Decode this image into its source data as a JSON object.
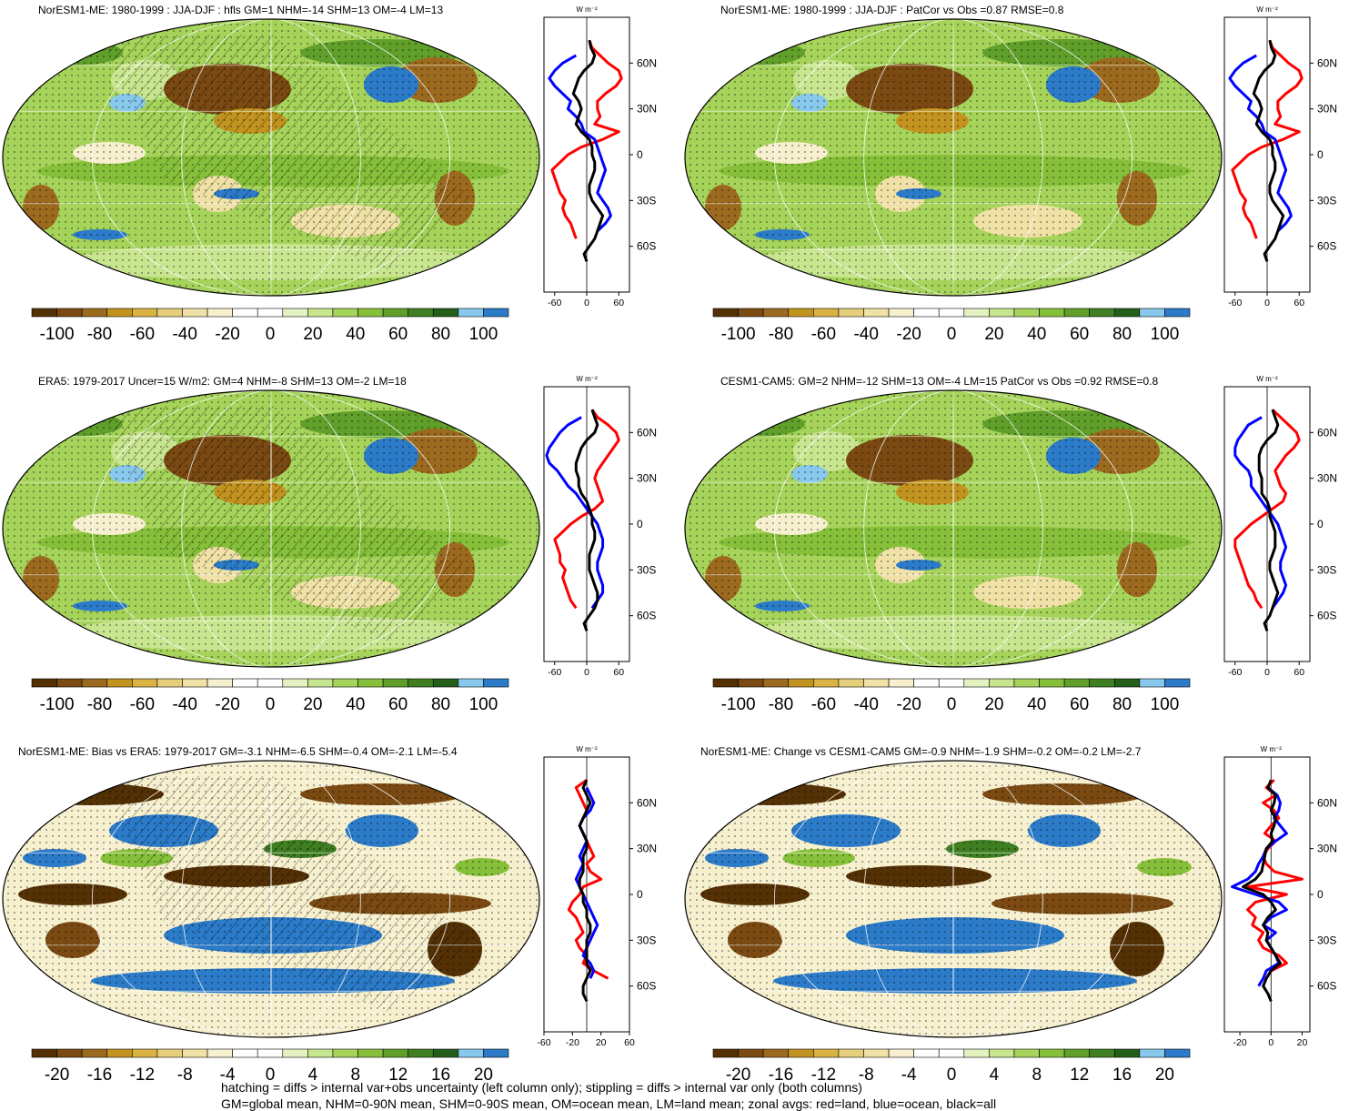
{
  "figure": {
    "footnote_1": "hatching = diffs > internal var+obs uncertainty (left column only); stippling = diffs > internal var only (both columns)",
    "footnote_2": "GM=global mean, NHM=0-90N mean, SHM=0-90S mean, OM=ocean mean, LM=land mean; zonal avgs: red=land, blue=ocean, black=all"
  },
  "colors": {
    "land": "#ff0000",
    "ocean": "#0000ff",
    "all": "#000000",
    "palette": [
      "#543005",
      "#7a4a12",
      "#9c6a1f",
      "#c2941f",
      "#d9b443",
      "#e6cf7a",
      "#f0e2a6",
      "#f7f0cf",
      "#ffffff",
      "#ffffff",
      "#e4f2c2",
      "#c8e58f",
      "#a6d35a",
      "#86c03a",
      "#5f9f2a",
      "#3f7f22",
      "#245f1a",
      "#87c8ec",
      "#2b7bc9"
    ]
  },
  "chart_data": [
    {
      "type": "map",
      "id": "p1",
      "title": "NorESM1-ME: 1980-1999 : JJA-DJF : hfls GM=1 NHM=-14 SHM=13 OM=-4 LM=13",
      "hatched": true,
      "colorbar_ticks": [
        "-100",
        "-80",
        "-60",
        "-40",
        "-20",
        "0",
        "20",
        "40",
        "60",
        "80",
        "100"
      ],
      "zonal": {
        "unit": "W m⁻²",
        "xlim": [
          -80,
          80
        ],
        "xticks": [
          "-60",
          "0",
          "60"
        ],
        "lat_ticks": [
          "60N",
          "30N",
          "0",
          "30S",
          "60S"
        ],
        "lat_values": [
          60,
          30,
          0,
          -30,
          -60
        ],
        "lat": [
          75,
          70,
          65,
          60,
          55,
          50,
          45,
          40,
          35,
          30,
          25,
          20,
          15,
          10,
          5,
          0,
          -5,
          -10,
          -15,
          -20,
          -25,
          -30,
          -35,
          -40,
          -45,
          -50,
          -55,
          -60,
          -65,
          -70
        ],
        "land": [
          5,
          10,
          25,
          40,
          60,
          65,
          55,
          35,
          20,
          20,
          25,
          15,
          60,
          30,
          -10,
          -35,
          -50,
          -65,
          -60,
          -55,
          -50,
          -40,
          -45,
          -40,
          -30,
          -25,
          -20,
          null,
          null,
          null
        ],
        "ocean": [
          null,
          null,
          -20,
          -45,
          -60,
          -70,
          -60,
          -45,
          -30,
          -35,
          -20,
          -10,
          -5,
          15,
          20,
          25,
          30,
          35,
          30,
          25,
          20,
          30,
          40,
          45,
          35,
          20,
          null,
          null,
          null,
          null
        ],
        "all": [
          5,
          8,
          15,
          10,
          -5,
          -15,
          -20,
          -25,
          -15,
          -10,
          -15,
          -20,
          -10,
          5,
          10,
          10,
          15,
          15,
          10,
          5,
          5,
          10,
          20,
          30,
          25,
          20,
          15,
          5,
          -5,
          0
        ]
      }
    },
    {
      "type": "map",
      "id": "p2",
      "title": "NorESM1-ME: 1980-1999 : JJA-DJF : PatCor vs Obs =0.87 RMSE=0.8",
      "hatched": false,
      "colorbar_ticks": [
        "-100",
        "-80",
        "-60",
        "-40",
        "-20",
        "0",
        "20",
        "40",
        "60",
        "80",
        "100"
      ],
      "zonal": {
        "unit": "W m⁻²",
        "xlim": [
          -80,
          80
        ],
        "xticks": [
          "-60",
          "0",
          "60"
        ],
        "lat_ticks": [
          "60N",
          "30N",
          "0",
          "30S",
          "60S"
        ],
        "lat_values": [
          60,
          30,
          0,
          -30,
          -60
        ],
        "lat": [
          75,
          70,
          65,
          60,
          55,
          50,
          45,
          40,
          35,
          30,
          25,
          20,
          15,
          10,
          5,
          0,
          -5,
          -10,
          -15,
          -20,
          -25,
          -30,
          -35,
          -40,
          -45,
          -50,
          -55,
          -60,
          -65,
          -70
        ],
        "land": [
          5,
          10,
          25,
          40,
          60,
          65,
          55,
          35,
          20,
          20,
          25,
          15,
          60,
          30,
          -10,
          -35,
          -50,
          -65,
          -60,
          -55,
          -50,
          -40,
          -45,
          -40,
          -30,
          -25,
          -20,
          null,
          null,
          null
        ],
        "ocean": [
          null,
          null,
          -20,
          -45,
          -60,
          -70,
          -60,
          -45,
          -30,
          -35,
          -20,
          -10,
          -5,
          15,
          20,
          25,
          30,
          35,
          30,
          25,
          20,
          30,
          40,
          45,
          35,
          20,
          null,
          null,
          null,
          null
        ],
        "all": [
          5,
          8,
          15,
          10,
          -5,
          -15,
          -20,
          -25,
          -15,
          -10,
          -15,
          -20,
          -10,
          5,
          10,
          10,
          15,
          15,
          10,
          5,
          5,
          10,
          20,
          30,
          25,
          20,
          15,
          5,
          -5,
          0
        ]
      }
    },
    {
      "type": "map",
      "id": "p3",
      "title": "ERA5: 1979-2017 Uncer=15 W/m2: GM=4 NHM=-8 SHM=13 OM=-2 LM=18",
      "hatched": true,
      "colorbar_ticks": [
        "-100",
        "-80",
        "-60",
        "-40",
        "-20",
        "0",
        "20",
        "40",
        "60",
        "80",
        "100"
      ],
      "zonal": {
        "unit": "W m⁻²",
        "xlim": [
          -80,
          80
        ],
        "xticks": [
          "-60",
          "0",
          "60"
        ],
        "lat_ticks": [
          "60N",
          "30N",
          "0",
          "30S",
          "60S"
        ],
        "lat_values": [
          60,
          30,
          0,
          -30,
          -60
        ],
        "lat": [
          75,
          70,
          65,
          60,
          55,
          50,
          45,
          40,
          35,
          30,
          25,
          20,
          15,
          10,
          5,
          0,
          -5,
          -10,
          -15,
          -20,
          -25,
          -30,
          -35,
          -40,
          -45,
          -50,
          -55,
          -60,
          -65,
          -70
        ],
        "land": [
          10,
          20,
          40,
          55,
          60,
          50,
          40,
          30,
          20,
          15,
          20,
          25,
          30,
          15,
          -10,
          -30,
          -45,
          -60,
          -55,
          -50,
          -50,
          -40,
          -45,
          -40,
          -35,
          -30,
          -20,
          null,
          null,
          null
        ],
        "ocean": [
          null,
          -10,
          -35,
          -50,
          -60,
          -70,
          -75,
          -70,
          -55,
          -45,
          -35,
          -20,
          -10,
          0,
          10,
          20,
          25,
          30,
          30,
          25,
          20,
          20,
          25,
          30,
          30,
          20,
          10,
          null,
          null,
          null
        ],
        "all": [
          10,
          15,
          20,
          15,
          0,
          -10,
          -15,
          -20,
          -20,
          -15,
          -15,
          -10,
          0,
          5,
          10,
          10,
          15,
          15,
          10,
          5,
          5,
          5,
          10,
          15,
          20,
          20,
          15,
          5,
          -5,
          0
        ]
      }
    },
    {
      "type": "map",
      "id": "p4",
      "title": "CESM1-CAM5: GM=2 NHM=-12 SHM=13 OM=-4 LM=15 PatCor vs Obs =0.92 RMSE=0.8",
      "hatched": false,
      "colorbar_ticks": [
        "-100",
        "-80",
        "-60",
        "-40",
        "-20",
        "0",
        "20",
        "40",
        "60",
        "80",
        "100"
      ],
      "zonal": {
        "unit": "W m⁻²",
        "xlim": [
          -80,
          80
        ],
        "xticks": [
          "-60",
          "0",
          "60"
        ],
        "lat_ticks": [
          "60N",
          "30N",
          "0",
          "30S",
          "60S"
        ],
        "lat_values": [
          60,
          30,
          0,
          -30,
          -60
        ],
        "lat": [
          75,
          70,
          65,
          60,
          55,
          50,
          45,
          40,
          35,
          30,
          25,
          20,
          15,
          10,
          5,
          0,
          -5,
          -10,
          -15,
          -20,
          -25,
          -30,
          -35,
          -40,
          -45,
          -50,
          -55,
          -60,
          -65,
          -70
        ],
        "land": [
          10,
          25,
          40,
          55,
          60,
          50,
          35,
          25,
          15,
          20,
          25,
          35,
          30,
          10,
          -10,
          -30,
          -45,
          -60,
          -60,
          -55,
          -50,
          -45,
          -40,
          -35,
          -25,
          -20,
          -10,
          null,
          null,
          null
        ],
        "ocean": [
          null,
          -10,
          -35,
          -45,
          -55,
          -60,
          -60,
          -50,
          -35,
          -30,
          -30,
          -20,
          -10,
          0,
          10,
          20,
          25,
          30,
          35,
          30,
          25,
          25,
          30,
          35,
          30,
          20,
          10,
          null,
          null,
          null
        ],
        "all": [
          10,
          15,
          20,
          15,
          0,
          -10,
          -15,
          -15,
          -15,
          -10,
          -10,
          -10,
          0,
          5,
          5,
          10,
          15,
          15,
          15,
          10,
          5,
          5,
          10,
          15,
          20,
          15,
          10,
          5,
          -5,
          0
        ]
      }
    },
    {
      "type": "map",
      "id": "p5",
      "title": "NorESM1-ME: Bias vs ERA5: 1979-2017 GM=-3.1 NHM=-6.5 SHM=-0.4 OM=-2.1 LM=-5.4",
      "hatched": true,
      "colorbar_ticks": [
        "-20",
        "-16",
        "-12",
        "-8",
        "-4",
        "0",
        "4",
        "8",
        "12",
        "16",
        "20"
      ],
      "zonal": {
        "unit": "W m⁻²",
        "xlim": [
          -60,
          60
        ],
        "xticks": [
          "-60",
          "-20",
          "20",
          "60"
        ],
        "lat_ticks": [
          "60N",
          "30N",
          "0",
          "30S",
          "60S"
        ],
        "lat_values": [
          60,
          30,
          0,
          -30,
          -60
        ],
        "lat": [
          75,
          70,
          65,
          60,
          55,
          50,
          45,
          40,
          35,
          30,
          25,
          20,
          15,
          10,
          5,
          0,
          -5,
          -10,
          -15,
          -20,
          -25,
          -30,
          -35,
          -40,
          -45,
          -50,
          -55,
          -60,
          -65,
          -70
        ],
        "land": [
          0,
          -15,
          -10,
          -5,
          0,
          -5,
          -10,
          -5,
          0,
          5,
          10,
          0,
          5,
          20,
          -5,
          -10,
          -20,
          -25,
          -15,
          -10,
          -5,
          -15,
          -10,
          0,
          -5,
          10,
          30,
          null,
          null,
          null
        ],
        "ocean": [
          null,
          0,
          5,
          10,
          5,
          -5,
          -10,
          -5,
          0,
          -5,
          -10,
          -5,
          -10,
          -15,
          -10,
          -5,
          0,
          5,
          10,
          15,
          10,
          5,
          0,
          -5,
          5,
          10,
          5,
          null,
          null,
          null
        ],
        "all": [
          0,
          -5,
          0,
          5,
          0,
          -5,
          -10,
          -5,
          0,
          0,
          -5,
          -5,
          -5,
          -10,
          -10,
          -5,
          -5,
          0,
          0,
          5,
          5,
          0,
          0,
          0,
          0,
          5,
          0,
          -5,
          -5,
          0
        ]
      }
    },
    {
      "type": "map",
      "id": "p6",
      "title": "NorESM1-ME: Change vs CESM1-CAM5 GM=-0.9 NHM=-1.9 SHM=-0.2 OM=-0.2 LM=-2.7",
      "hatched": false,
      "colorbar_ticks": [
        "-20",
        "-16",
        "-12",
        "-8",
        "-4",
        "0",
        "4",
        "8",
        "12",
        "16",
        "20"
      ],
      "zonal": {
        "unit": "W m⁻²",
        "xlim": [
          -30,
          25
        ],
        "xticks": [
          "-20",
          "0",
          "20"
        ],
        "lat_ticks": [
          "60N",
          "30N",
          "0",
          "30S",
          "60S"
        ],
        "lat_values": [
          60,
          30,
          0,
          -30,
          -60
        ],
        "lat": [
          75,
          70,
          65,
          60,
          55,
          50,
          45,
          40,
          35,
          30,
          25,
          20,
          15,
          10,
          5,
          0,
          -5,
          -10,
          -15,
          -20,
          -25,
          -30,
          -35,
          -40,
          -45,
          -50,
          -55,
          -60,
          -65,
          -70
        ],
        "land": [
          2,
          -3,
          3,
          -5,
          2,
          5,
          0,
          -4,
          3,
          -2,
          -5,
          -3,
          2,
          20,
          -15,
          10,
          -10,
          -15,
          -10,
          -12,
          -5,
          -8,
          -5,
          5,
          10,
          0,
          -3,
          null,
          null,
          null
        ],
        "ocean": [
          null,
          -2,
          4,
          6,
          5,
          2,
          6,
          10,
          3,
          -3,
          -5,
          -8,
          -10,
          -15,
          -25,
          -10,
          5,
          10,
          0,
          -5,
          3,
          -3,
          0,
          3,
          5,
          -3,
          -5,
          -8,
          null,
          null
        ],
        "all": [
          0,
          -2,
          3,
          2,
          0,
          3,
          2,
          0,
          1,
          -3,
          -4,
          -5,
          -6,
          -10,
          -18,
          -5,
          0,
          3,
          -2,
          -5,
          -2,
          -3,
          0,
          3,
          6,
          0,
          -3,
          -5,
          -2,
          0
        ]
      }
    }
  ]
}
